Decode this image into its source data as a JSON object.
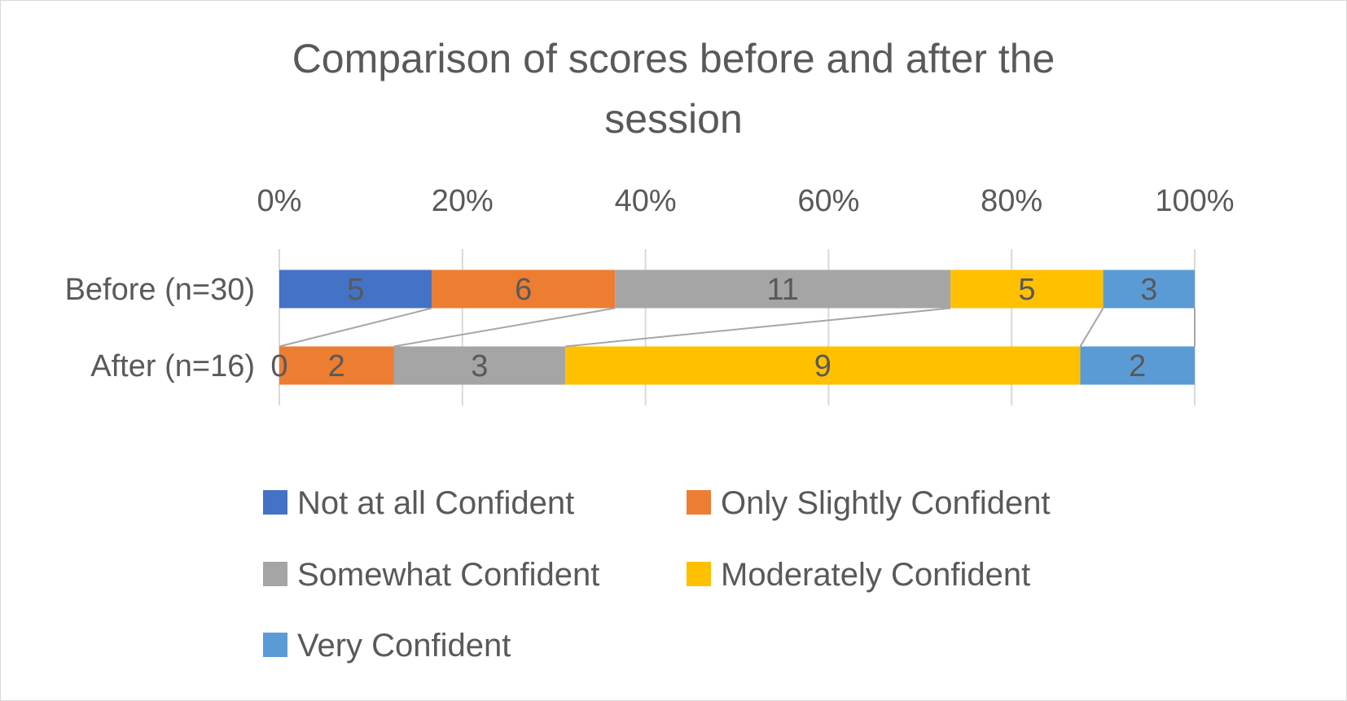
{
  "chart_data": {
    "type": "bar",
    "orientation": "horizontal",
    "stacked": "percent",
    "title_lines": [
      "Comparison of scores before and after the",
      "session"
    ],
    "categories": [
      "Before (n=30)",
      "After (n=16)"
    ],
    "series": [
      {
        "name": "Not at all Confident",
        "values": [
          5,
          0
        ],
        "color": "#4472C4"
      },
      {
        "name": "Only Slightly Confident",
        "values": [
          6,
          2
        ],
        "color": "#ED7D31"
      },
      {
        "name": "Somewhat Confident",
        "values": [
          11,
          3
        ],
        "color": "#A5A5A5"
      },
      {
        "name": "Moderately Confident",
        "values": [
          5,
          9
        ],
        "color": "#FFC000"
      },
      {
        "name": "Very Confident",
        "values": [
          3,
          2
        ],
        "color": "#5B9BD5"
      }
    ],
    "xaxis": {
      "position": "top",
      "range": [
        0,
        100
      ],
      "ticks": [
        "0%",
        "20%",
        "40%",
        "60%",
        "80%",
        "100%"
      ]
    },
    "gridlines": true,
    "series_lines": true,
    "data_labels": true,
    "legend_position": "bottom",
    "colors": {
      "text": "#595959",
      "grid": "#d9d9d9",
      "series_line": "#a6a6a6",
      "border": "#d9d9d9"
    }
  }
}
